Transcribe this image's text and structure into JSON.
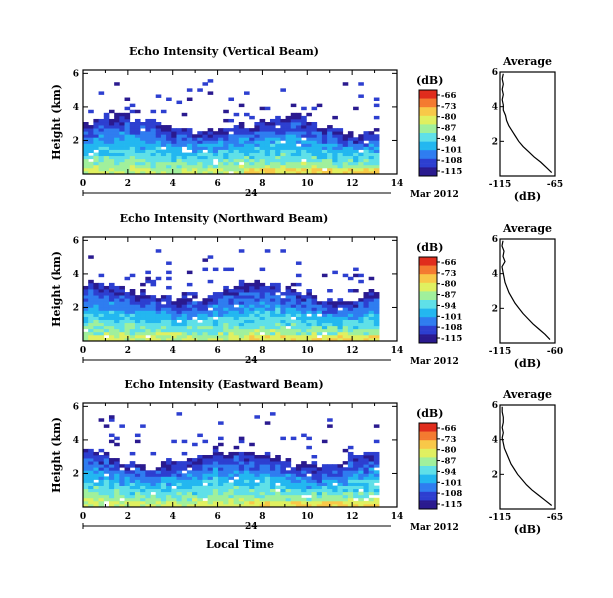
{
  "figure": {
    "x_label": "Local Time",
    "date_day": "24",
    "date_month_year": "Mar 2012",
    "units_label": "(dB)",
    "avg_title": "Average",
    "avg_xlabel": "(dB)",
    "palette": [
      "#2a1a8f",
      "#2d3fd0",
      "#2f7df0",
      "#23b7f0",
      "#5fe0e8",
      "#a0f09c",
      "#e0f060",
      "#f8c848",
      "#f47a30",
      "#e02c1c"
    ]
  },
  "chart_data": [
    {
      "type": "heatmap",
      "title": "Echo Intensity (Vertical Beam)",
      "ylabel": "Height (km)",
      "xlabel": "Local Time",
      "xlim": [
        0,
        14
      ],
      "ylim": [
        0,
        6.2
      ],
      "x_ticks": [
        "0",
        "2",
        "4",
        "6",
        "8",
        "10",
        "12",
        "14"
      ],
      "y_ticks": [
        "2",
        "4",
        "6"
      ],
      "colorbar_ticks": [
        "-66",
        "-73",
        "-80",
        "-87",
        "-94",
        "-101",
        "-108",
        "-115"
      ],
      "average": {
        "title": "Average",
        "xlim": [
          -115,
          -65
        ],
        "x_ticks": [
          "-115",
          "-65"
        ],
        "y_ticks": [
          "2",
          "4",
          "6"
        ],
        "height": [
          0.2,
          0.5,
          0.8,
          1.1,
          1.4,
          1.7,
          2.0,
          2.3,
          2.6,
          2.9,
          3.2,
          3.5,
          3.8,
          4.1,
          4.4,
          4.7,
          5.0,
          5.3,
          5.6,
          5.9
        ],
        "value": [
          -68,
          -73,
          -78,
          -84,
          -89,
          -94,
          -98,
          -101,
          -104,
          -107,
          -109,
          -110,
          -112,
          -112,
          -113,
          -112,
          -113,
          -112,
          -113,
          -112
        ]
      }
    },
    {
      "type": "heatmap",
      "title": "Echo Intensity (Northward Beam)",
      "ylabel": "Height (km)",
      "xlabel": "Local Time",
      "xlim": [
        0,
        14
      ],
      "ylim": [
        0,
        6.2
      ],
      "x_ticks": [
        "0",
        "2",
        "4",
        "6",
        "8",
        "10",
        "12",
        "14"
      ],
      "y_ticks": [
        "2",
        "4",
        "6"
      ],
      "colorbar_ticks": [
        "-66",
        "-73",
        "-80",
        "-87",
        "-94",
        "-101",
        "-108",
        "-115"
      ],
      "average": {
        "title": "Average",
        "xlim": [
          -115,
          -60
        ],
        "x_ticks": [
          "-115",
          "-60"
        ],
        "y_ticks": [
          "2",
          "4",
          "6"
        ],
        "height": [
          0.2,
          0.5,
          0.8,
          1.1,
          1.4,
          1.7,
          2.0,
          2.3,
          2.6,
          2.9,
          3.2,
          3.5,
          3.8,
          4.1,
          4.4,
          4.7,
          5.0,
          5.3,
          5.6,
          5.9
        ],
        "value": [
          -65,
          -70,
          -76,
          -82,
          -87,
          -92,
          -96,
          -100,
          -103,
          -106,
          -108,
          -110,
          -111,
          -112,
          -113,
          -110,
          -112,
          -111,
          -113,
          -112
        ]
      }
    },
    {
      "type": "heatmap",
      "title": "Echo Intensity (Eastward Beam)",
      "ylabel": "Height (km)",
      "xlabel": "Local Time",
      "xlim": [
        0,
        14
      ],
      "ylim": [
        0,
        6.2
      ],
      "x_ticks": [
        "0",
        "2",
        "4",
        "6",
        "8",
        "10",
        "12",
        "14"
      ],
      "y_ticks": [
        "2",
        "4",
        "6"
      ],
      "colorbar_ticks": [
        "-66",
        "-73",
        "-80",
        "-87",
        "-94",
        "-101",
        "-108",
        "-115"
      ],
      "average": {
        "title": "Average",
        "xlim": [
          -115,
          -65
        ],
        "x_ticks": [
          "-115",
          "-65"
        ],
        "y_ticks": [
          "2",
          "4",
          "6"
        ],
        "height": [
          0.2,
          0.5,
          0.8,
          1.1,
          1.4,
          1.7,
          2.0,
          2.3,
          2.6,
          2.9,
          3.2,
          3.5,
          3.8,
          4.1,
          4.4,
          4.7,
          5.0,
          5.3,
          5.6,
          5.9
        ],
        "value": [
          -68,
          -74,
          -80,
          -86,
          -91,
          -95,
          -99,
          -102,
          -105,
          -107,
          -109,
          -111,
          -112,
          -113,
          -112,
          -113,
          -112,
          -112,
          -113,
          -113
        ]
      }
    }
  ]
}
